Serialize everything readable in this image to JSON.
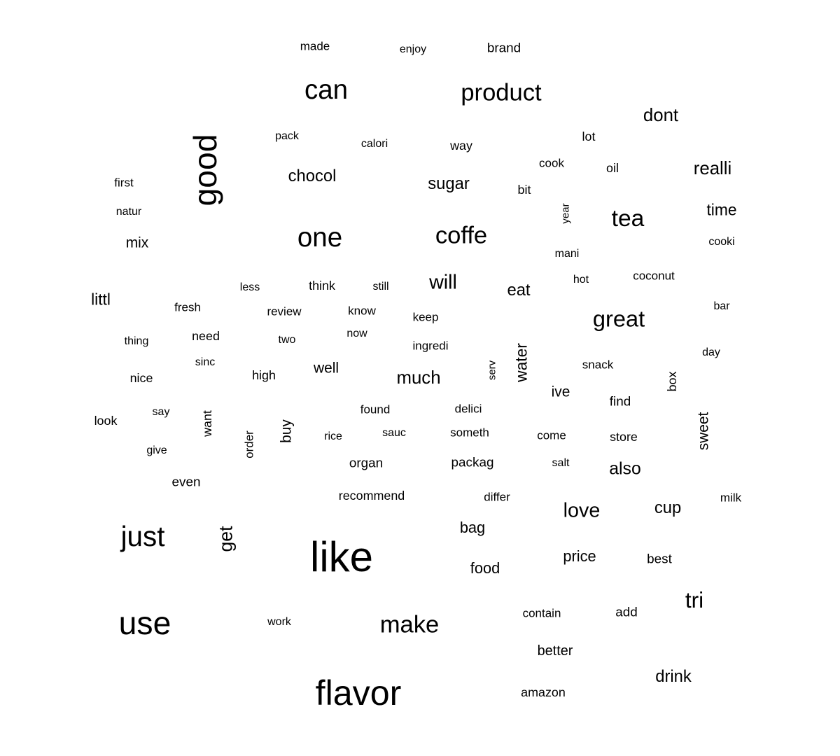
{
  "chart_data": {
    "type": "wordcloud",
    "words": [
      {
        "text": "like",
        "weight": 60
      },
      {
        "text": "flavor",
        "weight": 50
      },
      {
        "text": "use",
        "weight": 46
      },
      {
        "text": "good",
        "weight": 46
      },
      {
        "text": "just",
        "weight": 40
      },
      {
        "text": "one",
        "weight": 38
      },
      {
        "text": "can",
        "weight": 38
      },
      {
        "text": "make",
        "weight": 34
      },
      {
        "text": "product",
        "weight": 34
      },
      {
        "text": "coffe",
        "weight": 34
      },
      {
        "text": "tea",
        "weight": 33
      },
      {
        "text": "great",
        "weight": 32
      },
      {
        "text": "tri",
        "weight": 31
      },
      {
        "text": "will",
        "weight": 28
      },
      {
        "text": "love",
        "weight": 28
      },
      {
        "text": "get",
        "weight": 26
      },
      {
        "text": "much",
        "weight": 25
      },
      {
        "text": "realli",
        "weight": 25
      },
      {
        "text": "dont",
        "weight": 25
      },
      {
        "text": "also",
        "weight": 24
      },
      {
        "text": "chocol",
        "weight": 23
      },
      {
        "text": "sugar",
        "weight": 23
      },
      {
        "text": "eat",
        "weight": 23
      },
      {
        "text": "cup",
        "weight": 23
      },
      {
        "text": "drink",
        "weight": 23
      },
      {
        "text": "water",
        "weight": 22
      },
      {
        "text": "littl",
        "weight": 22
      },
      {
        "text": "time",
        "weight": 22
      },
      {
        "text": "bag",
        "weight": 21
      },
      {
        "text": "price",
        "weight": 21
      },
      {
        "text": "food",
        "weight": 21
      },
      {
        "text": "mix",
        "weight": 20
      },
      {
        "text": "buy",
        "weight": 20
      },
      {
        "text": "sweet",
        "weight": 20
      },
      {
        "text": "ive",
        "weight": 20
      },
      {
        "text": "well",
        "weight": 20
      },
      {
        "text": "better",
        "weight": 19
      },
      {
        "text": "brand",
        "weight": 18
      },
      {
        "text": "find",
        "weight": 18
      },
      {
        "text": "add",
        "weight": 18
      },
      {
        "text": "even",
        "weight": 18
      },
      {
        "text": "packag",
        "weight": 18
      },
      {
        "text": "organ",
        "weight": 18
      },
      {
        "text": "best",
        "weight": 18
      },
      {
        "text": "store",
        "weight": 17
      },
      {
        "text": "nice",
        "weight": 17
      },
      {
        "text": "need",
        "weight": 17
      },
      {
        "text": "oil",
        "weight": 17
      },
      {
        "text": "recommend",
        "weight": 17
      },
      {
        "text": "amazon",
        "weight": 17
      },
      {
        "text": "think",
        "weight": 17
      },
      {
        "text": "high",
        "weight": 17
      },
      {
        "text": "want",
        "weight": 17
      },
      {
        "text": "look",
        "weight": 17
      },
      {
        "text": "box",
        "weight": 17
      },
      {
        "text": "bit",
        "weight": 17
      },
      {
        "text": "lot",
        "weight": 17
      },
      {
        "text": "way",
        "weight": 17
      },
      {
        "text": "first",
        "weight": 16
      },
      {
        "text": "made",
        "weight": 16
      },
      {
        "text": "cook",
        "weight": 16
      },
      {
        "text": "order",
        "weight": 16
      },
      {
        "text": "contain",
        "weight": 16
      },
      {
        "text": "come",
        "weight": 16
      },
      {
        "text": "found",
        "weight": 16
      },
      {
        "text": "coconut",
        "weight": 16
      },
      {
        "text": "fresh",
        "weight": 16
      },
      {
        "text": "review",
        "weight": 16
      },
      {
        "text": "know",
        "weight": 16
      },
      {
        "text": "keep",
        "weight": 16
      },
      {
        "text": "delici",
        "weight": 16
      },
      {
        "text": "milk",
        "weight": 16
      },
      {
        "text": "snack",
        "weight": 16
      },
      {
        "text": "ingredi",
        "weight": 16
      },
      {
        "text": "someth",
        "weight": 16
      },
      {
        "text": "differ",
        "weight": 16
      },
      {
        "text": "enjoy",
        "weight": 15
      },
      {
        "text": "pack",
        "weight": 15
      },
      {
        "text": "calori",
        "weight": 15
      },
      {
        "text": "natur",
        "weight": 15
      },
      {
        "text": "less",
        "weight": 15
      },
      {
        "text": "still",
        "weight": 15
      },
      {
        "text": "thing",
        "weight": 15
      },
      {
        "text": "sinc",
        "weight": 15
      },
      {
        "text": "two",
        "weight": 15
      },
      {
        "text": "now",
        "weight": 15
      },
      {
        "text": "say",
        "weight": 15
      },
      {
        "text": "give",
        "weight": 15
      },
      {
        "text": "rice",
        "weight": 15
      },
      {
        "text": "sauc",
        "weight": 15
      },
      {
        "text": "salt",
        "weight": 15
      },
      {
        "text": "work",
        "weight": 15
      },
      {
        "text": "hot",
        "weight": 15
      },
      {
        "text": "mani",
        "weight": 15
      },
      {
        "text": "cooki",
        "weight": 15
      },
      {
        "text": "bar",
        "weight": 15
      },
      {
        "text": "day",
        "weight": 15
      },
      {
        "text": "year",
        "weight": 14
      },
      {
        "text": "serv",
        "weight": 14
      }
    ]
  }
}
